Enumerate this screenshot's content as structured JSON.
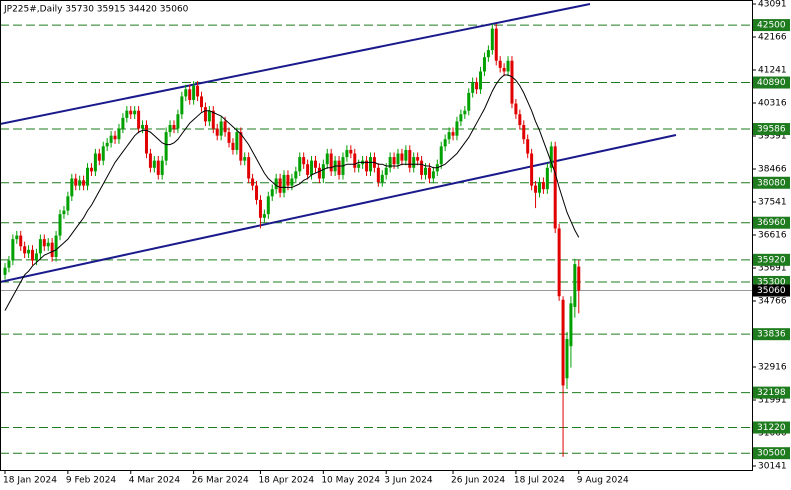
{
  "chart_data": {
    "type": "candlestick",
    "title": "JP225#,Daily  35730 35915 34420 35060",
    "categories": [
      "18 Jan 2024",
      null,
      null,
      null,
      null,
      null,
      null,
      null,
      null,
      null,
      null,
      null,
      null,
      null,
      null,
      null,
      "9 Feb 2024",
      null,
      null,
      null,
      null,
      null,
      null,
      null,
      null,
      null,
      null,
      null,
      null,
      null,
      null,
      null,
      "4 Mar 2024",
      null,
      null,
      null,
      null,
      null,
      null,
      null,
      null,
      null,
      null,
      null,
      null,
      null,
      null,
      null,
      "26 Mar 2024",
      null,
      null,
      null,
      null,
      null,
      null,
      null,
      null,
      null,
      null,
      null,
      null,
      null,
      null,
      null,
      null,
      "18 Apr 2024",
      null,
      null,
      null,
      null,
      null,
      null,
      null,
      null,
      null,
      null,
      null,
      null,
      null,
      null,
      null,
      "10 May 2024",
      null,
      null,
      null,
      null,
      null,
      null,
      null,
      null,
      null,
      null,
      null,
      null,
      null,
      null,
      null,
      "3 Jun 2024",
      null,
      null,
      null,
      null,
      null,
      null,
      null,
      null,
      null,
      null,
      null,
      null,
      null,
      null,
      null,
      null,
      "26 Jun 2024",
      null,
      null,
      null,
      null,
      null,
      null,
      null,
      null,
      null,
      null,
      null,
      null,
      null,
      null,
      null,
      "18 Jul 2024",
      null,
      null,
      null,
      null,
      null,
      null,
      null,
      null,
      null,
      null,
      null,
      null,
      null,
      null,
      null,
      "9 Aug 2024"
    ],
    "ohlc": [
      [
        35500,
        35830,
        35370,
        35700
      ],
      [
        35700,
        36030,
        35570,
        35900
      ],
      [
        35900,
        36630,
        35770,
        36500
      ],
      [
        36500,
        36730,
        36370,
        36600
      ],
      [
        36600,
        36730,
        36170,
        36300
      ],
      [
        36300,
        36430,
        35970,
        36100
      ],
      [
        36100,
        36330,
        35970,
        36200
      ],
      [
        36200,
        36330,
        35770,
        35900
      ],
      [
        35900,
        36230,
        35770,
        36100
      ],
      [
        36100,
        36630,
        35970,
        36500
      ],
      [
        36500,
        36630,
        36170,
        36300
      ],
      [
        36300,
        36530,
        36170,
        36400
      ],
      [
        36400,
        36530,
        35870,
        36000
      ],
      [
        36000,
        36730,
        35870,
        36600
      ],
      [
        36600,
        37330,
        36470,
        37200
      ],
      [
        37200,
        37430,
        37070,
        37300
      ],
      [
        37300,
        37830,
        37170,
        37700
      ],
      [
        37700,
        38330,
        37570,
        38200
      ],
      [
        38200,
        38330,
        37870,
        38000
      ],
      [
        38000,
        38280,
        37870,
        38150
      ],
      [
        38150,
        38280,
        37870,
        38000
      ],
      [
        38000,
        38630,
        37870,
        38500
      ],
      [
        38500,
        38630,
        38270,
        38400
      ],
      [
        38400,
        39030,
        38270,
        38900
      ],
      [
        38900,
        39030,
        38570,
        38700
      ],
      [
        38700,
        39230,
        38570,
        39100
      ],
      [
        39100,
        39330,
        38970,
        39200
      ],
      [
        39200,
        39530,
        39070,
        39400
      ],
      [
        39400,
        39530,
        39170,
        39300
      ],
      [
        39300,
        39730,
        39170,
        39600
      ],
      [
        39600,
        40030,
        39470,
        39900
      ],
      [
        39900,
        40230,
        39770,
        40100
      ],
      [
        40100,
        40230,
        39870,
        40000
      ],
      [
        40000,
        40230,
        39870,
        40100
      ],
      [
        40100,
        40230,
        39470,
        39600
      ],
      [
        39600,
        39830,
        39470,
        39700
      ],
      [
        39700,
        39830,
        38770,
        38900
      ],
      [
        38900,
        39030,
        38370,
        38500
      ],
      [
        38500,
        38830,
        38370,
        38700
      ],
      [
        38700,
        38830,
        38170,
        38300
      ],
      [
        38300,
        38830,
        38170,
        38700
      ],
      [
        38700,
        39630,
        38570,
        39500
      ],
      [
        39500,
        39830,
        39370,
        39700
      ],
      [
        39700,
        39830,
        39470,
        39600
      ],
      [
        39600,
        40130,
        39470,
        40000
      ],
      [
        40000,
        40630,
        39870,
        40500
      ],
      [
        40500,
        40830,
        40370,
        40700
      ],
      [
        40700,
        40830,
        40270,
        40400
      ],
      [
        40400,
        40930,
        40270,
        40800
      ],
      [
        40800,
        40930,
        40370,
        40500
      ],
      [
        40500,
        40630,
        40070,
        40200
      ],
      [
        40200,
        40330,
        39670,
        39800
      ],
      [
        39800,
        40230,
        39670,
        40100
      ],
      [
        40100,
        40230,
        39470,
        39600
      ],
      [
        39600,
        39730,
        39270,
        39400
      ],
      [
        39400,
        39930,
        39270,
        39800
      ],
      [
        39800,
        39930,
        39370,
        39500
      ],
      [
        39500,
        39630,
        39070,
        39200
      ],
      [
        39200,
        39330,
        38870,
        39000
      ],
      [
        39000,
        39630,
        38870,
        39500
      ],
      [
        39500,
        39630,
        38570,
        38700
      ],
      [
        38700,
        38930,
        38570,
        38800
      ],
      [
        38800,
        38930,
        38070,
        38200
      ],
      [
        38200,
        38330,
        37870,
        38000
      ],
      [
        38000,
        38130,
        37470,
        37600
      ],
      [
        37600,
        37730,
        36800,
        37100
      ],
      [
        37100,
        37330,
        36970,
        37200
      ],
      [
        37200,
        37830,
        37070,
        37700
      ],
      [
        37700,
        38030,
        37570,
        37900
      ],
      [
        37900,
        38330,
        37770,
        38200
      ],
      [
        38200,
        38330,
        37670,
        37800
      ],
      [
        37800,
        38430,
        37670,
        38300
      ],
      [
        38300,
        38430,
        37870,
        38000
      ],
      [
        38000,
        38330,
        37870,
        38200
      ],
      [
        38200,
        38530,
        38070,
        38400
      ],
      [
        38400,
        38930,
        38270,
        38800
      ],
      [
        38800,
        38930,
        38470,
        38600
      ],
      [
        38600,
        38730,
        38170,
        38300
      ],
      [
        38300,
        38830,
        38170,
        38700
      ],
      [
        38700,
        38830,
        38370,
        38500
      ],
      [
        38500,
        38630,
        38070,
        38200
      ],
      [
        38200,
        38730,
        38070,
        38600
      ],
      [
        38600,
        39030,
        38470,
        38900
      ],
      [
        38900,
        39030,
        38270,
        38400
      ],
      [
        38400,
        38830,
        38270,
        38700
      ],
      [
        38700,
        38830,
        38170,
        38300
      ],
      [
        38300,
        38930,
        38170,
        38800
      ],
      [
        38800,
        39130,
        38670,
        39000
      ],
      [
        39000,
        39130,
        38770,
        38900
      ],
      [
        38900,
        39030,
        38370,
        38500
      ],
      [
        38500,
        38730,
        38370,
        38600
      ],
      [
        38600,
        38830,
        38470,
        38700
      ],
      [
        38700,
        38830,
        38270,
        38400
      ],
      [
        38400,
        38930,
        38270,
        38800
      ],
      [
        38800,
        38930,
        38370,
        38500
      ],
      [
        38500,
        38630,
        37970,
        38100
      ],
      [
        38100,
        38430,
        37970,
        38300
      ],
      [
        38300,
        38630,
        38170,
        38500
      ],
      [
        38500,
        38930,
        38370,
        38800
      ],
      [
        38800,
        38930,
        38470,
        38600
      ],
      [
        38600,
        39030,
        38470,
        38900
      ],
      [
        38900,
        39030,
        38570,
        38700
      ],
      [
        38700,
        39130,
        38570,
        39000
      ],
      [
        39000,
        39130,
        38370,
        38500
      ],
      [
        38500,
        38930,
        38370,
        38800
      ],
      [
        38800,
        38930,
        38570,
        38700
      ],
      [
        38700,
        38830,
        38170,
        38300
      ],
      [
        38300,
        38630,
        38170,
        38500
      ],
      [
        38500,
        38630,
        38070,
        38200
      ],
      [
        38200,
        38530,
        38070,
        38400
      ],
      [
        38400,
        38730,
        38270,
        38600
      ],
      [
        38600,
        39230,
        38470,
        39100
      ],
      [
        39100,
        39430,
        38970,
        39300
      ],
      [
        39300,
        39630,
        39170,
        39500
      ],
      [
        39500,
        39630,
        39270,
        39400
      ],
      [
        39400,
        39930,
        39270,
        39800
      ],
      [
        39800,
        40130,
        39670,
        40000
      ],
      [
        40000,
        40230,
        39870,
        40100
      ],
      [
        40100,
        40730,
        39970,
        40600
      ],
      [
        40600,
        41030,
        40470,
        40900
      ],
      [
        40900,
        41030,
        40570,
        40700
      ],
      [
        40700,
        41330,
        40570,
        41200
      ],
      [
        41200,
        41730,
        41070,
        41600
      ],
      [
        41600,
        41930,
        41470,
        41800
      ],
      [
        41800,
        42530,
        41670,
        42400
      ],
      [
        42400,
        42530,
        41370,
        41500
      ],
      [
        41500,
        41630,
        41170,
        41300
      ],
      [
        41300,
        41430,
        41070,
        41200
      ],
      [
        41200,
        41630,
        41070,
        41500
      ],
      [
        41500,
        41630,
        40170,
        40300
      ],
      [
        40300,
        40430,
        39870,
        40000
      ],
      [
        40000,
        40130,
        39570,
        39700
      ],
      [
        39700,
        39830,
        39170,
        39300
      ],
      [
        39300,
        39430,
        38770,
        38900
      ],
      [
        38900,
        39030,
        37870,
        38000
      ],
      [
        38000,
        38130,
        37370,
        37800
      ],
      [
        37800,
        38230,
        37670,
        38100
      ],
      [
        38100,
        38230,
        37770,
        37900
      ],
      [
        37900,
        38630,
        37770,
        38500
      ],
      [
        38500,
        39230,
        38370,
        39100
      ],
      [
        39100,
        39230,
        36670,
        36800
      ],
      [
        36800,
        36930,
        34770,
        34900
      ],
      [
        34800,
        34900,
        30400,
        32400
      ],
      [
        32600,
        33900,
        32300,
        33700
      ],
      [
        33500,
        34900,
        32900,
        34700
      ],
      [
        34600,
        35950,
        34300,
        35800
      ],
      [
        35730,
        35915,
        34420,
        35060
      ]
    ],
    "ma": [
      34500,
      34700,
      34900,
      35100,
      35300,
      35500,
      35600,
      35750,
      35850,
      35950,
      36050,
      36100,
      36150,
      36200,
      36300,
      36400,
      36500,
      36650,
      36800,
      36950,
      37100,
      37300,
      37450,
      37650,
      37850,
      38050,
      38250,
      38450,
      38650,
      38800,
      38950,
      39100,
      39250,
      39400,
      39500,
      39550,
      39550,
      39500,
      39400,
      39300,
      39200,
      39150,
      39150,
      39200,
      39300,
      39450,
      39600,
      39750,
      39850,
      39950,
      40050,
      40100,
      40100,
      40050,
      40000,
      39950,
      39850,
      39750,
      39650,
      39550,
      39450,
      39300,
      39150,
      38950,
      38750,
      38550,
      38350,
      38200,
      38100,
      38000,
      37950,
      37950,
      37950,
      37950,
      38000,
      38050,
      38150,
      38200,
      38300,
      38350,
      38400,
      38450,
      38500,
      38500,
      38550,
      38550,
      38550,
      38600,
      38600,
      38600,
      38650,
      38650,
      38650,
      38650,
      38650,
      38600,
      38600,
      38550,
      38550,
      38550,
      38550,
      38600,
      38600,
      38600,
      38600,
      38600,
      38600,
      38550,
      38550,
      38500,
      38500,
      38550,
      38600,
      38700,
      38800,
      38900,
      39050,
      39200,
      39350,
      39550,
      39750,
      39950,
      40150,
      40400,
      40650,
      40850,
      41000,
      41100,
      41100,
      41050,
      40950,
      40800,
      40600,
      40350,
      40100,
      39800,
      39550,
      39250,
      38950,
      38650,
      38350,
      37950,
      37600,
      37250,
      37000,
      36750,
      36550
    ],
    "up_color": "#00a000",
    "down_color": "#e00000",
    "ma_color": "#000000",
    "level_color": "#1e7b1e",
    "ylim": [
      30029,
      43203
    ],
    "yticks": [
      43091,
      42166,
      41241,
      40316,
      39391,
      38466,
      37541,
      36616,
      35691,
      34766,
      33841,
      32916,
      31991,
      31066,
      30141
    ],
    "levels": [
      42500,
      40890,
      39586,
      38080,
      36960,
      35920,
      35300,
      33836,
      32198,
      31220,
      30500
    ],
    "price": 35060
  }
}
